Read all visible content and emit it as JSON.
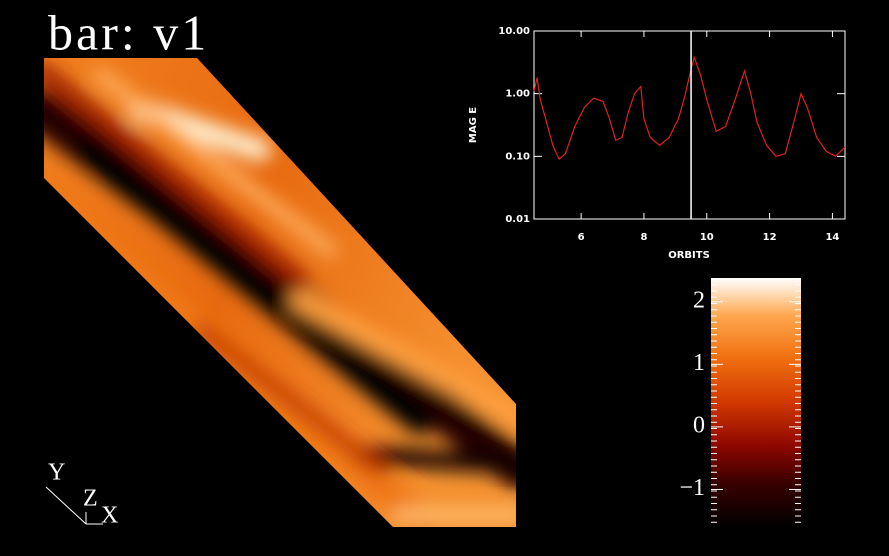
{
  "title": "bar: v1",
  "triad_labels": [
    "Y",
    "Z",
    "X"
  ],
  "chart_data": [
    {
      "type": "line",
      "xlabel": "ORBITS",
      "ylabel": "MAG E",
      "log_y": true,
      "color": "#e02020",
      "marker_x": 9.5,
      "x": [
        4.5,
        4.6,
        4.7,
        4.9,
        5.1,
        5.3,
        5.5,
        5.8,
        6.1,
        6.4,
        6.7,
        6.9,
        7.1,
        7.3,
        7.5,
        7.7,
        7.9,
        8.0,
        8.2,
        8.5,
        8.8,
        9.1,
        9.3,
        9.5,
        9.6,
        9.8,
        10.0,
        10.3,
        10.6,
        10.9,
        11.2,
        11.4,
        11.6,
        11.9,
        12.2,
        12.5,
        12.8,
        13.0,
        13.2,
        13.5,
        13.8,
        14.1,
        14.4
      ],
      "values": [
        1.1,
        1.8,
        0.8,
        0.35,
        0.15,
        0.09,
        0.11,
        0.3,
        0.6,
        0.85,
        0.75,
        0.4,
        0.18,
        0.2,
        0.5,
        1.0,
        1.3,
        0.4,
        0.2,
        0.15,
        0.2,
        0.4,
        0.9,
        2.5,
        3.8,
        2.0,
        0.8,
        0.25,
        0.3,
        0.8,
        2.3,
        1.0,
        0.35,
        0.15,
        0.1,
        0.11,
        0.4,
        1.0,
        0.6,
        0.2,
        0.12,
        0.1,
        0.14
      ],
      "xlim": [
        4.5,
        14.4
      ],
      "xticks": [
        6,
        8,
        10,
        12,
        14
      ],
      "ylim": [
        0.01,
        10
      ],
      "yticks": [
        0.01,
        {
          "value": 0.1,
          "label": "0.10"
        },
        {
          "value": 1,
          "label": "1.00"
        },
        {
          "value": 10,
          "label": "10.00"
        }
      ]
    },
    {
      "type": "colorbar",
      "ylim": [
        -1.6,
        2.38
      ],
      "yticks": [
        2,
        1,
        0,
        {
          "value": -1,
          "label": "−1"
        }
      ]
    }
  ]
}
